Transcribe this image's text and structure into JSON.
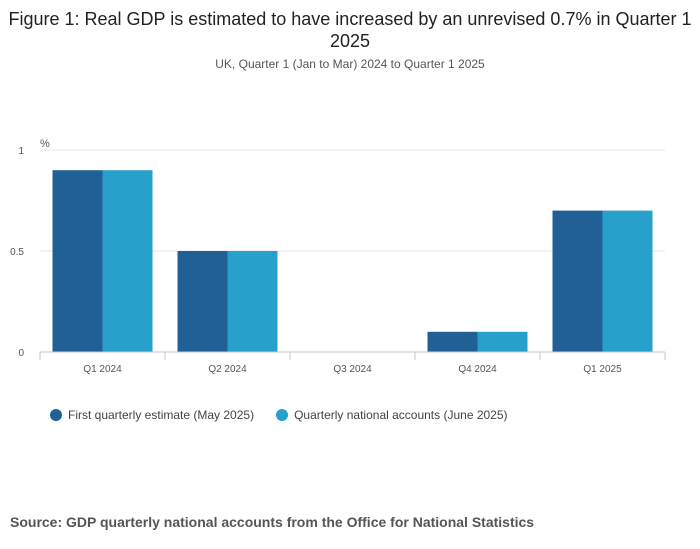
{
  "header": {
    "title": "Figure 1: Real GDP is estimated to have increased by an unrevised 0.7% in Quarter 1 2025",
    "subtitle": "UK, Quarter 1 (Jan to Mar) 2024 to Quarter 1 2025"
  },
  "footer": {
    "source": "Source: GDP quarterly national accounts from the Office for National Statistics"
  },
  "colors": {
    "series1": "#206095",
    "series2": "#27a0cc",
    "grid": "#e0e7ee",
    "axis": "#bfc8d1",
    "tick_text": "#555555"
  },
  "chart_data": {
    "type": "bar",
    "title": "Figure 1: Real GDP is estimated to have increased by an unrevised 0.7% in Quarter 1 2025",
    "subtitle": "UK, Quarter 1 (Jan to Mar) 2024 to Quarter 1 2025",
    "ylabel": "%",
    "xlabel": "",
    "categories": [
      "Q1 2024",
      "Q2 2024",
      "Q3 2024",
      "Q4 2024",
      "Q1 2025"
    ],
    "series": [
      {
        "name": "First quarterly estimate (May 2025)",
        "values": [
          0.9,
          0.5,
          0.0,
          0.1,
          0.7
        ]
      },
      {
        "name": "Quarterly national accounts (June 2025)",
        "values": [
          0.9,
          0.5,
          0.0,
          0.1,
          0.7
        ]
      }
    ],
    "ylim": [
      0,
      1
    ],
    "yticks": [
      0,
      0.5,
      1
    ],
    "grid": true,
    "legend": "bottom-left"
  }
}
